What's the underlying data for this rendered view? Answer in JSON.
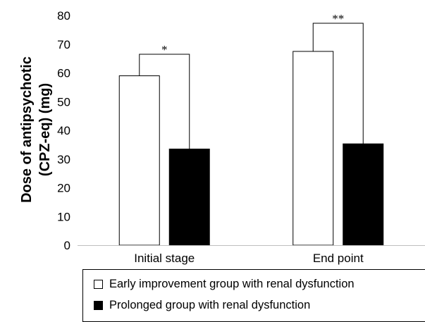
{
  "chart_data": {
    "type": "bar",
    "categories": [
      "Initial stage",
      "End point"
    ],
    "series": [
      {
        "name": "Early improvement group with renal dysfunction",
        "values": [
          59,
          67.5
        ],
        "color": "#ffffff"
      },
      {
        "name": "Prolonged group with renal dysfunction",
        "values": [
          33.5,
          35.3
        ],
        "color": "#000000"
      }
    ],
    "ylabel": [
      "Dose of antipsychotic",
      "(CPZ-eq) (mg)"
    ],
    "xlabel": "",
    "ylim": [
      0,
      80
    ],
    "yticks": [
      "0",
      "10",
      "20",
      "30",
      "40",
      "50",
      "60",
      "70",
      "80"
    ],
    "grid": false,
    "legend_position": "bottom",
    "annotations": [
      {
        "category": "Initial stage",
        "label": "*",
        "bracket_value": 66.5
      },
      {
        "category": "End point",
        "label": "**",
        "bracket_value": 77.3
      }
    ]
  }
}
